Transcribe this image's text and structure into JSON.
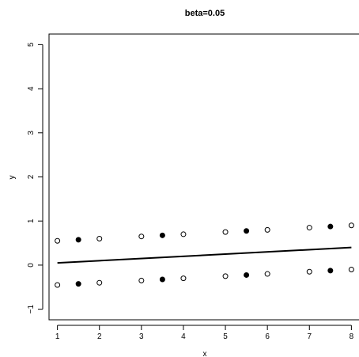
{
  "chart_data": {
    "type": "scatter",
    "title": "beta=0.05",
    "xlabel": "x",
    "ylabel": "y",
    "xlim": [
      0.8,
      8.2
    ],
    "ylim": [
      -1.24,
      5.24
    ],
    "x_ticks": [
      1,
      2,
      3,
      4,
      5,
      6,
      7,
      8
    ],
    "x_tick_labels": [
      "1",
      "2",
      "3",
      "4",
      "5",
      "6",
      "7",
      "8"
    ],
    "y_ticks": [
      -1,
      0,
      1,
      2,
      3,
      4,
      5
    ],
    "y_tick_labels": [
      "−1",
      "0",
      "1",
      "2",
      "3",
      "4",
      "5"
    ],
    "grid": false,
    "series": [
      {
        "marker": "open-circle",
        "x": [
          1,
          2,
          3,
          4,
          5,
          6,
          7,
          8,
          1,
          2,
          3,
          4,
          5,
          6,
          7,
          8
        ],
        "y": [
          0.55,
          0.6,
          0.65,
          0.7,
          0.75,
          0.8,
          0.85,
          0.9,
          -0.45,
          -0.4,
          -0.35,
          -0.3,
          -0.25,
          -0.2,
          -0.15,
          -0.1
        ]
      },
      {
        "marker": "filled-circle",
        "x": [
          1.5,
          3.5,
          5.5,
          7.5,
          1.5,
          3.5,
          5.5,
          7.5
        ],
        "y": [
          0.575,
          0.675,
          0.775,
          0.875,
          -0.425,
          -0.325,
          -0.225,
          -0.125
        ]
      }
    ],
    "line": {
      "x": [
        1,
        8
      ],
      "y": [
        0.05,
        0.4
      ]
    }
  }
}
